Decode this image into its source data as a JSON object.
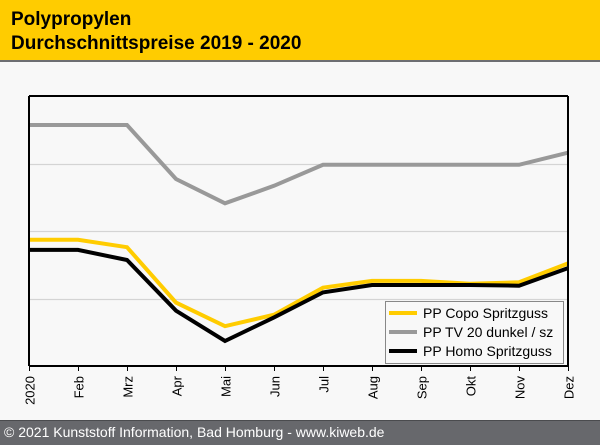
{
  "header": {
    "title_line1": "Polypropylen",
    "title_line2": "Durchschnittspreise 2019 - 2020"
  },
  "footer": {
    "text": "© 2021 Kunststoff Information, Bad Homburg - www.kiweb.de"
  },
  "colors": {
    "header_bg": "#ffcc00",
    "footer_bg": "#67686c",
    "plot_bg": "#f8f8f8",
    "grid": "#d4d4d4"
  },
  "chart_data": {
    "type": "line",
    "title": "Polypropylen Durchschnittspreise 2019 - 2020",
    "xlabel": "",
    "ylabel": "",
    "y_units_note": "relative (no y-axis labels shown; values in gridline units)",
    "ylim": [
      0,
      4
    ],
    "yticks": [
      1,
      2,
      3
    ],
    "ytick_labels": [],
    "grid": true,
    "legend_position": "bottom-right",
    "categories": [
      "2020",
      "Feb",
      "Mrz",
      "Apr",
      "Mai",
      "Jun",
      "Jul",
      "Aug",
      "Sep",
      "Okt",
      "Nov",
      "Dez"
    ],
    "series": [
      {
        "name": "PP Copo Spritzguss",
        "color": "#ffcc00",
        "values": [
          1.87,
          1.87,
          1.76,
          0.94,
          0.59,
          0.76,
          1.16,
          1.26,
          1.26,
          1.22,
          1.24,
          1.52
        ]
      },
      {
        "name": "PP TV 20 dunkel / sz",
        "color": "#999999",
        "values": [
          3.57,
          3.57,
          3.57,
          2.77,
          2.41,
          2.67,
          2.98,
          2.98,
          2.98,
          2.98,
          2.98,
          3.16
        ]
      },
      {
        "name": "PP Homo Spritzguss",
        "color": "#000000",
        "values": [
          1.72,
          1.72,
          1.57,
          0.82,
          0.37,
          0.72,
          1.09,
          1.2,
          1.2,
          1.2,
          1.19,
          1.45
        ]
      }
    ]
  }
}
